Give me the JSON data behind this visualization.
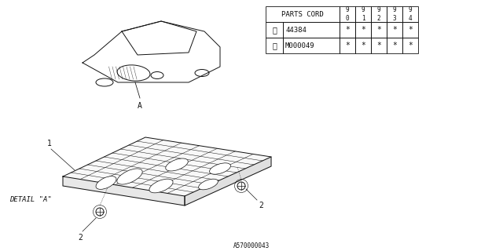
{
  "bg_color": "#ffffff",
  "parts_cord_header": "PARTS CORD",
  "year_cols": [
    "9\n0",
    "9\n1",
    "9\n2",
    "9\n3",
    "9\n4"
  ],
  "parts": [
    {
      "num": "①",
      "code": "44384",
      "vals": [
        "*",
        "*",
        "*",
        "*",
        "*"
      ]
    },
    {
      "num": "②",
      "code": "M000049",
      "vals": [
        "*",
        "*",
        "*",
        "*",
        "*"
      ]
    }
  ],
  "footer_label": "A570000043",
  "detail_label": "DETAIL \"A\"",
  "callout_A": "A",
  "label_1": "1",
  "label_2": "2"
}
